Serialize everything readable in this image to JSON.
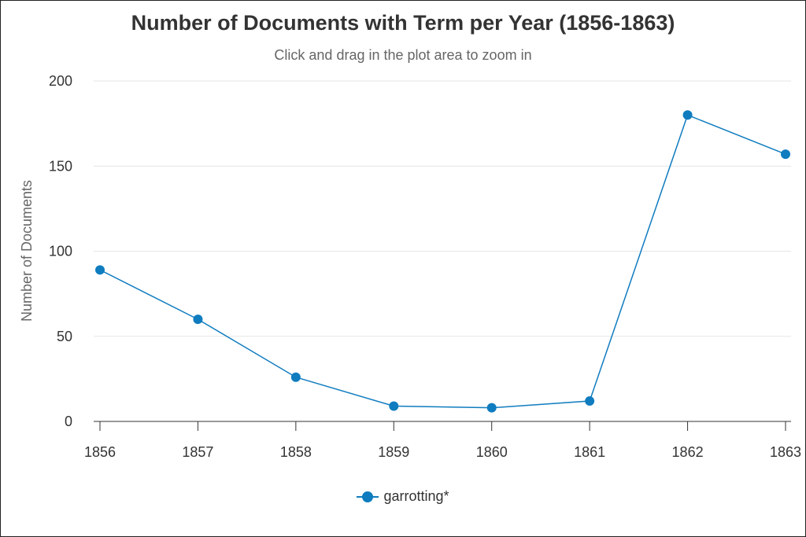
{
  "chart_data": {
    "type": "line",
    "title": "Number of Documents with Term per Year (1856-1863)",
    "subtitle": "Click and drag in the plot area to zoom in",
    "xlabel": "",
    "ylabel": "Number of Documents",
    "categories": [
      "1856",
      "1857",
      "1858",
      "1859",
      "1860",
      "1861",
      "1862",
      "1863"
    ],
    "series": [
      {
        "name": "garrotting*",
        "values": [
          89,
          60,
          26,
          9,
          8,
          12,
          180,
          157
        ],
        "color": "#0f7cbf"
      }
    ],
    "ylim": [
      0,
      200
    ],
    "yticks": [
      0,
      50,
      100,
      150,
      200
    ],
    "grid": true,
    "legend_position": "bottom-center",
    "grid_color": "#e6e6e6",
    "axis_color": "#333333"
  }
}
